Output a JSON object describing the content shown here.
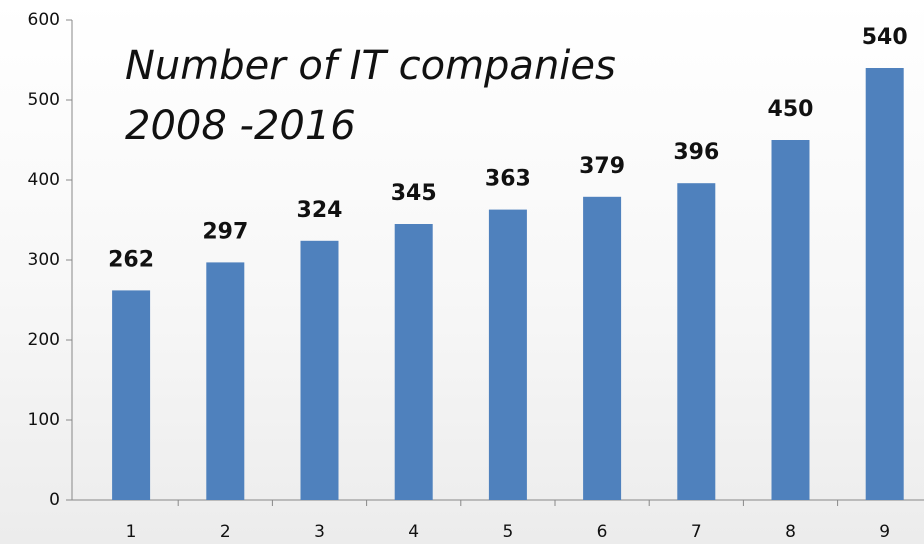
{
  "chart_data": {
    "type": "bar",
    "title": "Number of IT companies",
    "subtitle": "2008 -2016",
    "categories": [
      "1",
      "2",
      "3",
      "4",
      "5",
      "6",
      "7",
      "8",
      "9"
    ],
    "values": [
      262,
      297,
      324,
      345,
      363,
      379,
      396,
      450,
      540
    ],
    "color": "#4f81bd",
    "ylim": [
      0,
      600
    ],
    "yticks": [
      0,
      100,
      200,
      300,
      400,
      500,
      600
    ],
    "grid": false
  }
}
